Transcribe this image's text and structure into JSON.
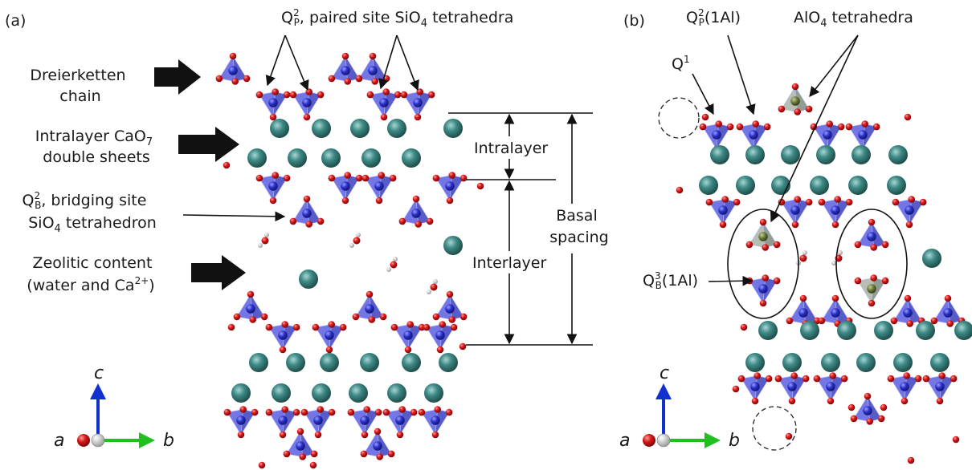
{
  "panel_a": {
    "label": "(a)",
    "q2p_label_main": "Q",
    "q2p_label_sup": "2",
    "q2p_label_sub": "P",
    "q2p_label_rest": ", paired site SiO",
    "q2p_label_sub4": "4",
    "q2p_label_end": " tetrahedra",
    "dreierketten_line1": "Dreierketten",
    "dreierketten_line2": "chain",
    "intralayer_line1_main": "Intralayer CaO",
    "intralayer_line1_sub": "7",
    "intralayer_line2": "double sheets",
    "q2b_line1_main": "Q",
    "q2b_line1_sup": "2",
    "q2b_line1_sub": "B",
    "q2b_line1_rest": ", bridging site",
    "q2b_line2_main": "SiO",
    "q2b_line2_sub": "4",
    "q2b_line2_rest": " tetrahedron",
    "zeolitic_line1": "Zeolitic content",
    "zeolitic_line2_main": "(water and Ca",
    "zeolitic_line2_sup": "2+",
    "zeolitic_line2_end": ")",
    "intralayer_dim": "Intralayer",
    "interlayer_dim": "Interlayer",
    "basal_line1": "Basal",
    "basal_line2": "spacing",
    "axis_c": "c",
    "axis_a": "a",
    "axis_b": "b"
  },
  "panel_b": {
    "label": "(b)",
    "q2p1al_main": "Q",
    "q2p1al_sup": "2",
    "q2p1al_sub": "P",
    "q2p1al_rest": "(1Al)",
    "alo4_main": "AlO",
    "alo4_sub": "4",
    "alo4_rest": " tetrahedra",
    "q1_main": "Q",
    "q1_sup": "1",
    "q3b_main": "Q",
    "q3b_sup": "3",
    "q3b_sub": "B",
    "q3b_rest": "(1Al)",
    "axis_c": "c",
    "axis_a": "a",
    "axis_b": "b"
  },
  "colors": {
    "si_tetra": "#5a5fe0",
    "si_atom": "#2a2fc8",
    "oxygen": "#d81818",
    "calcium": "#3e8a86",
    "al_tetra": "#9aa89a",
    "al_atom": "#6e7a3e",
    "hydrogen": "#e8e8e8",
    "axis_c": "#1030d0",
    "axis_b": "#20c020",
    "axis_a": "#c00000"
  }
}
